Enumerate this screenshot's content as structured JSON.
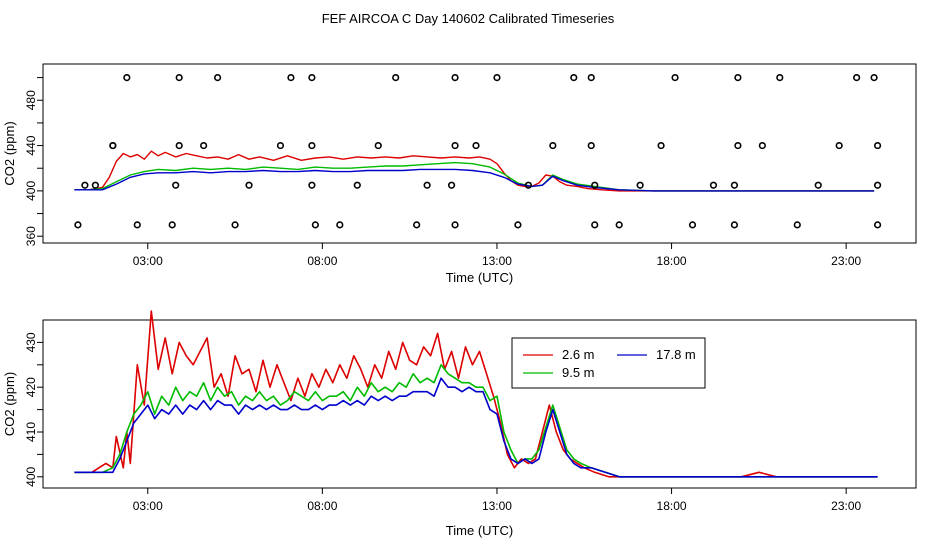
{
  "title": "FEF AIRCOA C  Day 140602  Calibrated Timeseries",
  "colors": {
    "2.6 m": "#dd0000",
    "9.5 m": "#00bb00",
    "17.8 m": "#0000cc",
    "cal": "#000000"
  },
  "chart_data": [
    {
      "type": "line",
      "ylabel": "CO2 (ppm)",
      "xlabel": "Time (UTC)",
      "xlim": [
        0.0,
        25.0
      ],
      "ylim": [
        354,
        512
      ],
      "xticks": [
        3,
        8,
        13,
        18,
        23
      ],
      "xtick_labels": [
        "03:00",
        "08:00",
        "13:00",
        "18:00",
        "23:00"
      ],
      "yticks": [
        360,
        380,
        400,
        420,
        440,
        460,
        480,
        500
      ],
      "ytick_labels": [
        "360",
        "",
        "400",
        "",
        "440",
        "",
        "480",
        ""
      ],
      "grid": false,
      "series": [
        {
          "name": "2.6 m",
          "x": [
            0.9,
            1.3,
            1.7,
            1.9,
            2.1,
            2.3,
            2.5,
            2.7,
            2.9,
            3.1,
            3.3,
            3.5,
            3.8,
            4.1,
            4.4,
            4.7,
            5.0,
            5.3,
            5.6,
            5.9,
            6.2,
            6.6,
            7.0,
            7.4,
            7.8,
            8.2,
            8.6,
            9.0,
            9.4,
            9.8,
            10.2,
            10.6,
            11.0,
            11.4,
            11.8,
            12.2,
            12.5,
            12.8,
            13.0,
            13.2,
            13.4,
            13.6,
            13.8,
            14.0,
            14.2,
            14.4,
            14.6,
            14.8,
            15.0,
            15.3,
            15.6,
            16.0,
            16.5,
            17.0,
            17.5,
            18.0,
            19.0,
            20.0,
            21.0,
            22.0,
            23.0,
            23.8
          ],
          "y": [
            401,
            401,
            403,
            412,
            426,
            433,
            430,
            432,
            428,
            435,
            431,
            434,
            430,
            433,
            431,
            429,
            430,
            428,
            432,
            428,
            430,
            427,
            431,
            427,
            429,
            430,
            428,
            430,
            429,
            430,
            429,
            431,
            430,
            429,
            430,
            429,
            430,
            428,
            424,
            416,
            409,
            405,
            404,
            404,
            407,
            414,
            413,
            408,
            405,
            404,
            402,
            401,
            400,
            400,
            400,
            400,
            400,
            400,
            400,
            400,
            400,
            400
          ]
        },
        {
          "name": "9.5 m",
          "x": [
            0.9,
            1.3,
            1.7,
            2.1,
            2.5,
            2.9,
            3.3,
            3.8,
            4.3,
            4.8,
            5.3,
            5.8,
            6.3,
            6.8,
            7.3,
            7.8,
            8.3,
            8.8,
            9.3,
            9.8,
            10.3,
            10.8,
            11.3,
            11.8,
            12.3,
            12.8,
            13.2,
            13.6,
            14.0,
            14.3,
            14.6,
            14.9,
            15.3,
            15.8,
            16.5,
            17.5,
            18.5,
            19.5,
            20.5,
            21.5,
            22.5,
            23.8
          ],
          "y": [
            401,
            401,
            402,
            408,
            414,
            417,
            419,
            418,
            420,
            419,
            420,
            419,
            421,
            420,
            419,
            421,
            420,
            420,
            421,
            422,
            422,
            423,
            424,
            425,
            424,
            421,
            415,
            407,
            404,
            405,
            414,
            410,
            406,
            404,
            401,
            400,
            400,
            400,
            400,
            400,
            400,
            400
          ]
        },
        {
          "name": "17.8 m",
          "x": [
            0.9,
            1.3,
            1.7,
            2.1,
            2.5,
            2.9,
            3.3,
            3.8,
            4.3,
            4.8,
            5.3,
            5.8,
            6.3,
            6.8,
            7.3,
            7.8,
            8.3,
            8.8,
            9.3,
            9.8,
            10.3,
            10.8,
            11.3,
            11.8,
            12.3,
            12.8,
            13.2,
            13.6,
            14.0,
            14.3,
            14.6,
            14.9,
            15.3,
            15.8,
            16.5,
            17.5,
            18.5,
            19.5,
            20.5,
            21.5,
            22.5,
            23.8
          ],
          "y": [
            401,
            401,
            401,
            406,
            412,
            415,
            416,
            416,
            417,
            416,
            417,
            417,
            418,
            417,
            417,
            418,
            417,
            417,
            418,
            418,
            418,
            419,
            419,
            419,
            418,
            416,
            412,
            406,
            404,
            405,
            413,
            409,
            405,
            403,
            401,
            400,
            400,
            400,
            400,
            400,
            400,
            400
          ]
        },
        {
          "name": "cal",
          "marker": "circle",
          "x": [
            1.5,
            2.0,
            2.4,
            3.9,
            5.0,
            7.1,
            7.7,
            10.1,
            11.8,
            13.0,
            15.2,
            15.7,
            18.1,
            19.9,
            21.1,
            23.3,
            23.8,
            2.0,
            3.9,
            4.6,
            6.8,
            7.7,
            9.6,
            11.8,
            12.4,
            14.6,
            15.7,
            17.7,
            19.9,
            20.6,
            22.8,
            23.9,
            1.2,
            3.8,
            5.9,
            7.7,
            9.0,
            11.0,
            11.7,
            13.9,
            15.8,
            17.1,
            19.2,
            19.8,
            22.2,
            23.9,
            1.0,
            2.7,
            3.7,
            5.5,
            7.8,
            8.5,
            10.7,
            11.8,
            13.6,
            15.8,
            16.5,
            18.6,
            19.8,
            21.6,
            23.9
          ],
          "y": [
            405,
            440,
            500,
            500,
            500,
            500,
            500,
            500,
            500,
            500,
            500,
            500,
            500,
            500,
            500,
            500,
            500,
            440,
            440,
            440,
            440,
            440,
            440,
            440,
            440,
            440,
            440,
            440,
            440,
            440,
            440,
            440,
            405,
            405,
            405,
            405,
            405,
            405,
            405,
            405,
            405,
            405,
            405,
            405,
            405,
            405,
            370,
            370,
            370,
            370,
            370,
            370,
            370,
            370,
            370,
            370,
            370,
            370,
            370,
            370,
            370
          ]
        }
      ]
    },
    {
      "type": "line",
      "ylabel": "CO2 (ppm)",
      "xlabel": "Time (UTC)",
      "xlim": [
        0.0,
        25.0
      ],
      "ylim": [
        397.5,
        435.0
      ],
      "xticks": [
        3,
        8,
        13,
        18,
        23
      ],
      "xtick_labels": [
        "03:00",
        "08:00",
        "13:00",
        "18:00",
        "23:00"
      ],
      "yticks": [
        400,
        405,
        410,
        415,
        420,
        425,
        430
      ],
      "ytick_labels": [
        "400",
        "",
        "410",
        "",
        "420",
        "",
        "430"
      ],
      "grid": false,
      "legend": {
        "position": "top-right",
        "entries": [
          "2.6 m",
          "17.8 m",
          "9.5 m"
        ]
      },
      "series": [
        {
          "name": "2.6 m",
          "x": [
            0.9,
            1.2,
            1.4,
            1.6,
            1.8,
            2.0,
            2.1,
            2.3,
            2.4,
            2.5,
            2.7,
            2.9,
            3.1,
            3.3,
            3.5,
            3.7,
            3.9,
            4.1,
            4.3,
            4.5,
            4.7,
            4.9,
            5.1,
            5.3,
            5.5,
            5.7,
            5.9,
            6.1,
            6.3,
            6.5,
            6.7,
            6.9,
            7.1,
            7.3,
            7.5,
            7.7,
            7.9,
            8.1,
            8.3,
            8.5,
            8.7,
            8.9,
            9.1,
            9.3,
            9.5,
            9.7,
            9.9,
            10.1,
            10.3,
            10.5,
            10.7,
            10.9,
            11.1,
            11.3,
            11.5,
            11.7,
            11.9,
            12.1,
            12.3,
            12.5,
            12.7,
            12.9,
            13.1,
            13.3,
            13.5,
            13.7,
            13.9,
            14.1,
            14.3,
            14.5,
            14.7,
            14.9,
            15.1,
            15.3,
            15.5,
            15.8,
            16.2,
            16.6,
            17.0,
            17.5,
            18.0,
            18.5,
            19.0,
            19.5,
            20.0,
            20.5,
            21.0,
            21.5,
            22.0,
            22.5,
            23.0,
            23.5,
            23.9
          ],
          "y": [
            401,
            401,
            401,
            402,
            403,
            402,
            409,
            402,
            410,
            403,
            425,
            416,
            437,
            424,
            431,
            423,
            430,
            427,
            425,
            428,
            431,
            420,
            423,
            418,
            427,
            423,
            424,
            419,
            426,
            420,
            425,
            421,
            417,
            422,
            418,
            423,
            420,
            424,
            421,
            425,
            422,
            427,
            424,
            420,
            425,
            422,
            428,
            424,
            430,
            426,
            425,
            429,
            427,
            432,
            424,
            428,
            422,
            429,
            425,
            428,
            423,
            418,
            412,
            405,
            402,
            404,
            403,
            404,
            410,
            416,
            410,
            406,
            404,
            403,
            402,
            401,
            400,
            400,
            400,
            400,
            400,
            400,
            400,
            400,
            400,
            401,
            400,
            400,
            400,
            400,
            400,
            400,
            400
          ]
        },
        {
          "name": "9.5 m",
          "x": [
            0.9,
            1.3,
            1.7,
            2.0,
            2.2,
            2.4,
            2.6,
            2.8,
            3.0,
            3.2,
            3.4,
            3.6,
            3.8,
            4.0,
            4.2,
            4.4,
            4.6,
            4.8,
            5.0,
            5.2,
            5.4,
            5.6,
            5.8,
            6.0,
            6.2,
            6.4,
            6.6,
            6.8,
            7.0,
            7.2,
            7.4,
            7.6,
            7.8,
            8.0,
            8.2,
            8.4,
            8.6,
            8.8,
            9.0,
            9.2,
            9.4,
            9.6,
            9.8,
            10.0,
            10.2,
            10.4,
            10.6,
            10.8,
            11.0,
            11.2,
            11.4,
            11.6,
            11.8,
            12.0,
            12.2,
            12.4,
            12.6,
            12.8,
            13.0,
            13.2,
            13.4,
            13.6,
            13.8,
            14.0,
            14.2,
            14.4,
            14.6,
            14.8,
            15.0,
            15.2,
            15.4,
            15.7,
            16.1,
            16.5,
            17.0,
            17.5,
            18.0,
            18.5,
            19.0,
            19.5,
            20.0,
            20.5,
            21.0,
            21.5,
            22.0,
            22.5,
            23.0,
            23.5,
            23.9
          ],
          "y": [
            401,
            401,
            401,
            402,
            405,
            410,
            414,
            416,
            419,
            414,
            418,
            416,
            420,
            417,
            419,
            418,
            421,
            417,
            420,
            418,
            419,
            416,
            418,
            417,
            419,
            417,
            418,
            416,
            417,
            419,
            418,
            417,
            419,
            417,
            418,
            418,
            419,
            417,
            420,
            418,
            421,
            419,
            420,
            419,
            421,
            420,
            423,
            421,
            422,
            421,
            425,
            423,
            422,
            421,
            421,
            420,
            420,
            417,
            418,
            410,
            406,
            403,
            404,
            404,
            406,
            411,
            416,
            411,
            406,
            404,
            403,
            402,
            401,
            400,
            400,
            400,
            400,
            400,
            400,
            400,
            400,
            400,
            400,
            400,
            400,
            400,
            400,
            400,
            400
          ]
        },
        {
          "name": "17.8 m",
          "x": [
            0.9,
            1.3,
            1.7,
            2.0,
            2.2,
            2.4,
            2.6,
            2.8,
            3.0,
            3.2,
            3.4,
            3.6,
            3.8,
            4.0,
            4.2,
            4.4,
            4.6,
            4.8,
            5.0,
            5.2,
            5.4,
            5.6,
            5.8,
            6.0,
            6.2,
            6.4,
            6.6,
            6.8,
            7.0,
            7.2,
            7.4,
            7.6,
            7.8,
            8.0,
            8.2,
            8.4,
            8.6,
            8.8,
            9.0,
            9.2,
            9.4,
            9.6,
            9.8,
            10.0,
            10.2,
            10.4,
            10.6,
            10.8,
            11.0,
            11.2,
            11.4,
            11.6,
            11.8,
            12.0,
            12.2,
            12.4,
            12.6,
            12.8,
            13.0,
            13.2,
            13.4,
            13.6,
            13.8,
            14.0,
            14.2,
            14.4,
            14.6,
            14.8,
            15.0,
            15.2,
            15.4,
            15.7,
            16.1,
            16.5,
            17.0,
            17.5,
            18.0,
            18.5,
            19.0,
            19.5,
            20.0,
            20.5,
            21.0,
            21.5,
            22.0,
            22.5,
            23.0,
            23.5,
            23.9
          ],
          "y": [
            401,
            401,
            401,
            401,
            404,
            408,
            412,
            414,
            416,
            413,
            415,
            414,
            416,
            414,
            416,
            415,
            417,
            415,
            417,
            416,
            416,
            414,
            416,
            415,
            416,
            415,
            416,
            415,
            415,
            416,
            415,
            415,
            416,
            415,
            416,
            416,
            417,
            416,
            417,
            416,
            418,
            417,
            418,
            417,
            418,
            418,
            419,
            419,
            419,
            418,
            422,
            420,
            420,
            419,
            420,
            419,
            419,
            415,
            414,
            408,
            404,
            403,
            404,
            403,
            404,
            410,
            415,
            410,
            405,
            403,
            402,
            402,
            401,
            400,
            400,
            400,
            400,
            400,
            400,
            400,
            400,
            400,
            400,
            400,
            400,
            400,
            400,
            400,
            400
          ]
        }
      ]
    }
  ]
}
